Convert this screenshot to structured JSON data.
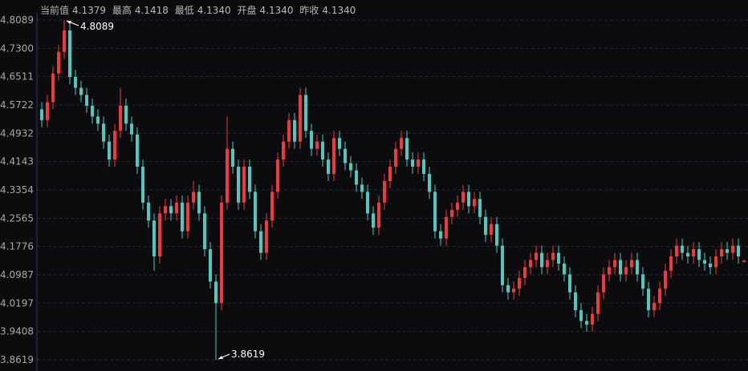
{
  "header": {
    "current_label": "当前值",
    "current": "4.1379",
    "high_label": "最高",
    "high": "4.1418",
    "low_label": "最低",
    "low": "4.1340",
    "open_label": "开盘",
    "open": "4.1340",
    "prev_close_label": "昨收",
    "prev_close": "4.1340"
  },
  "chart_data": {
    "type": "candlestick",
    "title": "",
    "xlabel": "",
    "ylabel": "",
    "ylim": [
      3.8619,
      4.8089
    ],
    "yticks": [
      "4.8089",
      "4.7300",
      "4.6511",
      "4.5722",
      "4.4932",
      "4.4143",
      "4.3354",
      "4.2565",
      "4.1776",
      "4.0987",
      "4.0197",
      "3.9408",
      "3.8619"
    ],
    "grid": true,
    "colors": {
      "up": "#f0393f",
      "down": "#4fc8c0",
      "grid": "#1e2c38",
      "background": "#0c0c0e"
    },
    "annotations": {
      "max": "4.8089",
      "min": "3.8619"
    },
    "ohlc": [
      [
        4.56,
        4.58,
        4.51,
        4.53
      ],
      [
        4.53,
        4.6,
        4.51,
        4.58
      ],
      [
        4.58,
        4.68,
        4.56,
        4.66
      ],
      [
        4.66,
        4.74,
        4.64,
        4.72
      ],
      [
        4.72,
        4.8089,
        4.7,
        4.78
      ],
      [
        4.78,
        4.8,
        4.63,
        4.65
      ],
      [
        4.65,
        4.67,
        4.6,
        4.62
      ],
      [
        4.62,
        4.64,
        4.58,
        4.6
      ],
      [
        4.6,
        4.62,
        4.55,
        4.57
      ],
      [
        4.57,
        4.59,
        4.52,
        4.54
      ],
      [
        4.54,
        4.56,
        4.5,
        4.52
      ],
      [
        4.52,
        4.54,
        4.45,
        4.47
      ],
      [
        4.47,
        4.49,
        4.4,
        4.42
      ],
      [
        4.42,
        4.52,
        4.4,
        4.5
      ],
      [
        4.5,
        4.62,
        4.48,
        4.57
      ],
      [
        4.57,
        4.59,
        4.5,
        4.52
      ],
      [
        4.52,
        4.54,
        4.47,
        4.49
      ],
      [
        4.49,
        4.51,
        4.38,
        4.4
      ],
      [
        4.4,
        4.42,
        4.28,
        4.3
      ],
      [
        4.3,
        4.32,
        4.23,
        4.25
      ],
      [
        4.25,
        4.27,
        4.11,
        4.15
      ],
      [
        4.15,
        4.29,
        4.13,
        4.27
      ],
      [
        4.27,
        4.31,
        4.25,
        4.29
      ],
      [
        4.29,
        4.31,
        4.25,
        4.27
      ],
      [
        4.27,
        4.32,
        4.25,
        4.3
      ],
      [
        4.3,
        4.32,
        4.2,
        4.22
      ],
      [
        4.22,
        4.32,
        4.2,
        4.3
      ],
      [
        4.3,
        4.36,
        4.28,
        4.33
      ],
      [
        4.33,
        4.35,
        4.25,
        4.27
      ],
      [
        4.27,
        4.29,
        4.15,
        4.17
      ],
      [
        4.17,
        4.19,
        4.06,
        4.08
      ],
      [
        4.08,
        4.1,
        3.8619,
        4.02
      ],
      [
        4.02,
        4.32,
        4.0,
        4.3
      ],
      [
        4.3,
        4.54,
        4.28,
        4.45
      ],
      [
        4.45,
        4.47,
        4.38,
        4.4
      ],
      [
        4.4,
        4.42,
        4.28,
        4.3
      ],
      [
        4.3,
        4.42,
        4.28,
        4.4
      ],
      [
        4.4,
        4.42,
        4.31,
        4.33
      ],
      [
        4.33,
        4.35,
        4.2,
        4.22
      ],
      [
        4.22,
        4.24,
        4.14,
        4.16
      ],
      [
        4.16,
        4.27,
        4.14,
        4.25
      ],
      [
        4.25,
        4.35,
        4.23,
        4.33
      ],
      [
        4.33,
        4.44,
        4.31,
        4.42
      ],
      [
        4.42,
        4.49,
        4.4,
        4.47
      ],
      [
        4.47,
        4.55,
        4.45,
        4.53
      ],
      [
        4.53,
        4.55,
        4.45,
        4.47
      ],
      [
        4.47,
        4.62,
        4.45,
        4.6
      ],
      [
        4.6,
        4.62,
        4.48,
        4.5
      ],
      [
        4.5,
        4.52,
        4.43,
        4.45
      ],
      [
        4.45,
        4.49,
        4.43,
        4.47
      ],
      [
        4.47,
        4.49,
        4.4,
        4.42
      ],
      [
        4.42,
        4.44,
        4.36,
        4.38
      ],
      [
        4.38,
        4.5,
        4.36,
        4.48
      ],
      [
        4.48,
        4.5,
        4.43,
        4.45
      ],
      [
        4.45,
        4.47,
        4.39,
        4.41
      ],
      [
        4.41,
        4.43,
        4.37,
        4.39
      ],
      [
        4.39,
        4.41,
        4.33,
        4.35
      ],
      [
        4.35,
        4.37,
        4.31,
        4.33
      ],
      [
        4.33,
        4.35,
        4.25,
        4.27
      ],
      [
        4.27,
        4.29,
        4.21,
        4.23
      ],
      [
        4.23,
        4.32,
        4.21,
        4.3
      ],
      [
        4.3,
        4.38,
        4.28,
        4.36
      ],
      [
        4.36,
        4.42,
        4.34,
        4.4
      ],
      [
        4.4,
        4.47,
        4.38,
        4.45
      ],
      [
        4.45,
        4.5,
        4.43,
        4.48
      ],
      [
        4.48,
        4.5,
        4.4,
        4.42
      ],
      [
        4.42,
        4.44,
        4.38,
        4.4
      ],
      [
        4.4,
        4.44,
        4.38,
        4.42
      ],
      [
        4.42,
        4.44,
        4.36,
        4.38
      ],
      [
        4.38,
        4.4,
        4.31,
        4.33
      ],
      [
        4.33,
        4.35,
        4.2,
        4.22
      ],
      [
        4.22,
        4.24,
        4.18,
        4.2
      ],
      [
        4.2,
        4.28,
        4.18,
        4.26
      ],
      [
        4.26,
        4.3,
        4.24,
        4.28
      ],
      [
        4.28,
        4.32,
        4.26,
        4.3
      ],
      [
        4.3,
        4.35,
        4.28,
        4.33
      ],
      [
        4.33,
        4.35,
        4.27,
        4.29
      ],
      [
        4.29,
        4.33,
        4.27,
        4.31
      ],
      [
        4.31,
        4.33,
        4.24,
        4.26
      ],
      [
        4.26,
        4.28,
        4.19,
        4.21
      ],
      [
        4.21,
        4.26,
        4.19,
        4.24
      ],
      [
        4.24,
        4.26,
        4.16,
        4.18
      ],
      [
        4.18,
        4.2,
        4.05,
        4.07
      ],
      [
        4.07,
        4.09,
        4.03,
        4.05
      ],
      [
        4.05,
        4.08,
        4.03,
        4.06
      ],
      [
        4.06,
        4.11,
        4.04,
        4.09
      ],
      [
        4.09,
        4.14,
        4.07,
        4.12
      ],
      [
        4.12,
        4.16,
        4.1,
        4.14
      ],
      [
        4.14,
        4.18,
        4.12,
        4.16
      ],
      [
        4.16,
        4.18,
        4.1,
        4.12
      ],
      [
        4.12,
        4.16,
        4.1,
        4.14
      ],
      [
        4.14,
        4.18,
        4.12,
        4.16
      ],
      [
        4.16,
        4.18,
        4.11,
        4.13
      ],
      [
        4.13,
        4.15,
        4.08,
        4.1
      ],
      [
        4.1,
        4.12,
        4.03,
        4.05
      ],
      [
        4.05,
        4.07,
        3.98,
        4.0
      ],
      [
        4.0,
        4.02,
        3.95,
        3.97
      ],
      [
        3.97,
        3.99,
        3.94,
        3.96
      ],
      [
        3.96,
        4.01,
        3.94,
        3.99
      ],
      [
        3.99,
        4.07,
        3.97,
        4.05
      ],
      [
        4.05,
        4.12,
        4.03,
        4.1
      ],
      [
        4.1,
        4.14,
        4.08,
        4.12
      ],
      [
        4.12,
        4.16,
        4.1,
        4.14
      ],
      [
        4.14,
        4.16,
        4.08,
        4.1
      ],
      [
        4.1,
        4.14,
        4.08,
        4.12
      ],
      [
        4.12,
        4.16,
        4.1,
        4.14
      ],
      [
        4.14,
        4.16,
        4.08,
        4.1
      ],
      [
        4.1,
        4.12,
        4.04,
        4.06
      ],
      [
        4.06,
        4.08,
        3.98,
        4.0
      ],
      [
        4.0,
        4.04,
        3.98,
        4.02
      ],
      [
        4.02,
        4.08,
        4.0,
        4.06
      ],
      [
        4.06,
        4.13,
        4.04,
        4.11
      ],
      [
        4.11,
        4.17,
        4.09,
        4.15
      ],
      [
        4.15,
        4.2,
        4.13,
        4.18
      ],
      [
        4.18,
        4.2,
        4.14,
        4.16
      ],
      [
        4.16,
        4.18,
        4.13,
        4.15
      ],
      [
        4.15,
        4.19,
        4.13,
        4.17
      ],
      [
        4.17,
        4.19,
        4.12,
        4.14
      ],
      [
        4.14,
        4.16,
        4.11,
        4.13
      ],
      [
        4.13,
        4.15,
        4.1,
        4.12
      ],
      [
        4.12,
        4.17,
        4.1,
        4.15
      ],
      [
        4.15,
        4.19,
        4.13,
        4.17
      ],
      [
        4.17,
        4.19,
        4.14,
        4.16
      ],
      [
        4.16,
        4.2,
        4.14,
        4.18
      ],
      [
        4.18,
        4.2,
        4.13,
        4.15
      ],
      [
        4.134,
        4.1418,
        4.134,
        4.1379
      ]
    ]
  }
}
